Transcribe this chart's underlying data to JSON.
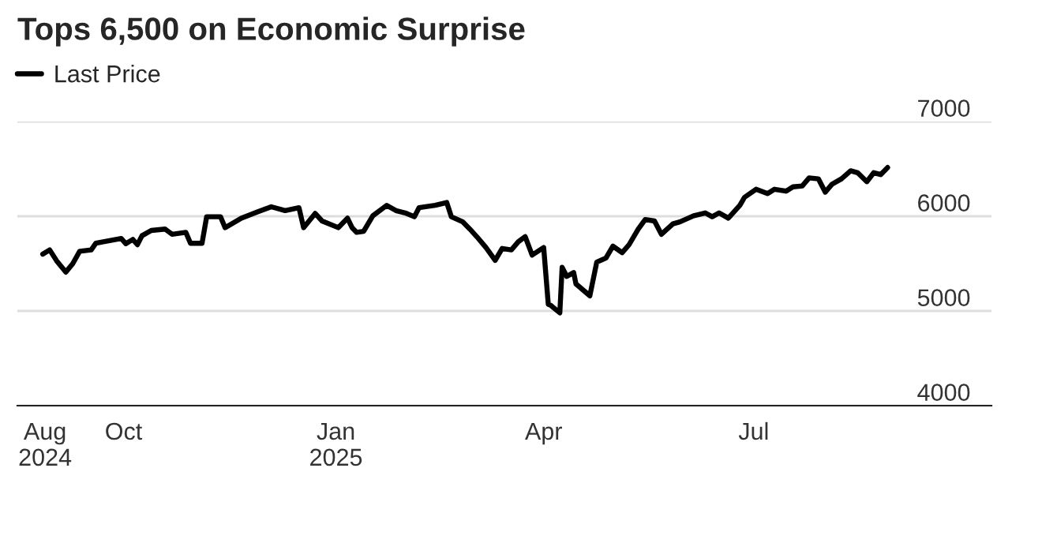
{
  "chart_data": {
    "type": "line",
    "title": "Tops 6,500 on Economic Surprise",
    "x": [
      "2024-08-27",
      "2024-08-30",
      "2024-09-02",
      "2024-09-06",
      "2024-09-09",
      "2024-09-12",
      "2024-09-17",
      "2024-09-19",
      "2024-09-30",
      "2024-10-02",
      "2024-10-05",
      "2024-10-07",
      "2024-10-09",
      "2024-10-13",
      "2024-10-19",
      "2024-10-22",
      "2024-10-28",
      "2024-10-30",
      "2024-11-04",
      "2024-11-06",
      "2024-11-12",
      "2024-11-14",
      "2024-11-21",
      "2024-11-28",
      "2024-12-04",
      "2024-12-10",
      "2024-12-16",
      "2024-12-18",
      "2024-12-23",
      "2024-12-26",
      "2025-01-02",
      "2025-01-06",
      "2025-01-08",
      "2025-01-10",
      "2025-01-13",
      "2025-01-17",
      "2025-01-23",
      "2025-01-27",
      "2025-01-31",
      "2025-02-04",
      "2025-02-06",
      "2025-02-13",
      "2025-02-18",
      "2025-02-20",
      "2025-02-25",
      "2025-02-28",
      "2025-03-03",
      "2025-03-07",
      "2025-03-11",
      "2025-03-14",
      "2025-03-18",
      "2025-03-21",
      "2025-03-24",
      "2025-03-27",
      "2025-04-01",
      "2025-04-03",
      "2025-04-04",
      "2025-04-08",
      "2025-04-09",
      "2025-04-11",
      "2025-04-14",
      "2025-04-15",
      "2025-04-21",
      "2025-04-24",
      "2025-04-28",
      "2025-05-01",
      "2025-05-05",
      "2025-05-08",
      "2025-05-12",
      "2025-05-15",
      "2025-05-19",
      "2025-05-22",
      "2025-05-27",
      "2025-05-30",
      "2025-06-05",
      "2025-06-10",
      "2025-06-13",
      "2025-06-16",
      "2025-06-20",
      "2025-06-25",
      "2025-06-27",
      "2025-07-02",
      "2025-07-07",
      "2025-07-10",
      "2025-07-15",
      "2025-07-18",
      "2025-07-22",
      "2025-07-25",
      "2025-07-29",
      "2025-08-01",
      "2025-08-04",
      "2025-08-08",
      "2025-08-12",
      "2025-08-15",
      "2025-08-19",
      "2025-08-22",
      "2025-08-25",
      "2025-08-28"
    ],
    "series": [
      {
        "name": "Last Price",
        "color": "#000000",
        "values": [
          5600,
          5645,
          5530,
          5410,
          5500,
          5630,
          5645,
          5715,
          5765,
          5710,
          5755,
          5700,
          5795,
          5850,
          5865,
          5810,
          5830,
          5715,
          5715,
          5995,
          5995,
          5880,
          5980,
          6045,
          6100,
          6060,
          6090,
          5880,
          6030,
          5950,
          5880,
          5980,
          5880,
          5830,
          5840,
          6005,
          6115,
          6060,
          6035,
          5995,
          6090,
          6115,
          6145,
          5995,
          5940,
          5865,
          5785,
          5670,
          5535,
          5660,
          5645,
          5730,
          5785,
          5590,
          5670,
          5070,
          5060,
          4980,
          5460,
          5365,
          5405,
          5285,
          5160,
          5515,
          5560,
          5685,
          5615,
          5700,
          5865,
          5965,
          5950,
          5810,
          5920,
          5940,
          6005,
          6035,
          5995,
          6035,
          5980,
          6115,
          6200,
          6285,
          6240,
          6285,
          6265,
          6310,
          6320,
          6405,
          6395,
          6255,
          6340,
          6395,
          6480,
          6460,
          6365,
          6460,
          6440,
          6515
        ]
      }
    ],
    "xlim": [
      "2024-08-16",
      "2025-10-12"
    ],
    "xticks": [
      {
        "value": "2024-08-28",
        "label": "Aug\n2024"
      },
      {
        "value": "2024-10-01",
        "label": "Oct"
      },
      {
        "value": "2025-01-01",
        "label": "Jan\n2025"
      },
      {
        "value": "2025-04-01",
        "label": "Apr"
      },
      {
        "value": "2025-07-01",
        "label": "Jul"
      }
    ],
    "ylim": [
      4000,
      7000
    ],
    "yticks": [
      4000,
      5000,
      6000,
      7000
    ],
    "grid": "y",
    "legend": "top left",
    "line_style": "solid",
    "marker": "none"
  }
}
